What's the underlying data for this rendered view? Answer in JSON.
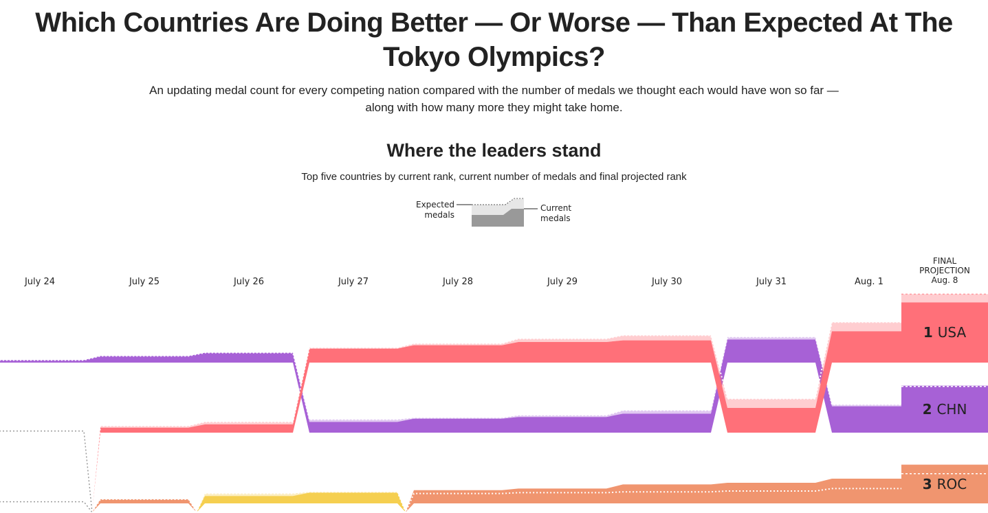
{
  "title": "Which Countries Are Doing Better — Or Worse — Than Expected At The Tokyo Olympics?",
  "subtitle": "An updating medal count for every competing nation compared with the number of medals we thought each would have won so far — along with how many more they might take home.",
  "section_title": "Where the leaders stand",
  "section_caption": "Top five countries by current rank, current number of medals and final projected rank",
  "legend": {
    "expected": "Expected medals",
    "current": "Current medals"
  },
  "colors": {
    "USA": "#ff7079",
    "CHN": "#a761d6",
    "ROC": "#f0956f",
    "JPN": "#f5cf50",
    "other": "#999999"
  },
  "chart_data": {
    "type": "area",
    "title": "Where the leaders stand",
    "days": [
      "July 24",
      "July 25",
      "July 26",
      "July 27",
      "July 28",
      "July 29",
      "July 30",
      "July 31",
      "Aug. 1"
    ],
    "rows": [
      [
        {
          "c": "CHN",
          "cur": 3,
          "exp": 3
        },
        {
          "c": "CHN",
          "cur": 8,
          "exp": 8
        },
        {
          "c": "CHN",
          "cur": 12,
          "exp": 12
        },
        {
          "c": "USA",
          "cur": 17,
          "exp": 18
        },
        {
          "c": "USA",
          "cur": 21,
          "exp": 23
        },
        {
          "c": "USA",
          "cur": 25,
          "exp": 29
        },
        {
          "c": "USA",
          "cur": 27,
          "exp": 33
        },
        {
          "c": "CHN",
          "cur": 28,
          "exp": 31
        },
        {
          "c": "USA",
          "cur": 38,
          "exp": 49
        }
      ],
      [
        {
          "c": "other",
          "cur": 2,
          "exp": 2
        },
        {
          "c": "USA",
          "cur": 6,
          "exp": 8
        },
        {
          "c": "USA",
          "cur": 10,
          "exp": 13
        },
        {
          "c": "CHN",
          "cur": 13,
          "exp": 16
        },
        {
          "c": "CHN",
          "cur": 17,
          "exp": 18
        },
        {
          "c": "CHN",
          "cur": 19,
          "exp": 21
        },
        {
          "c": "CHN",
          "cur": 23,
          "exp": 27
        },
        {
          "c": "USA",
          "cur": 30,
          "exp": 41
        },
        {
          "c": "CHN",
          "cur": 32,
          "exp": 34
        }
      ],
      [
        {
          "c": "other",
          "cur": 2,
          "exp": 2
        },
        {
          "c": "ROC",
          "cur": 5,
          "exp": 5
        },
        {
          "c": "JPN",
          "cur": 9,
          "exp": 12
        },
        {
          "c": "JPN",
          "cur": 13,
          "exp": 14
        },
        {
          "c": "ROC",
          "cur": 16,
          "exp": 12
        },
        {
          "c": "ROC",
          "cur": 18,
          "exp": 13
        },
        {
          "c": "ROC",
          "cur": 23,
          "exp": 14
        },
        {
          "c": "ROC",
          "cur": 25,
          "exp": 15
        },
        {
          "c": "ROC",
          "cur": 30,
          "exp": 18
        }
      ]
    ],
    "final": {
      "header": [
        "FINAL",
        "PROJECTION",
        "Aug. 8"
      ],
      "rows": [
        {
          "rank": "1",
          "c": "USA",
          "cur": 73,
          "exp": 83
        },
        {
          "rank": "2",
          "c": "CHN",
          "cur": 57,
          "exp": 56
        },
        {
          "rank": "3",
          "c": "ROC",
          "cur": 47,
          "exp": 36
        }
      ]
    }
  }
}
